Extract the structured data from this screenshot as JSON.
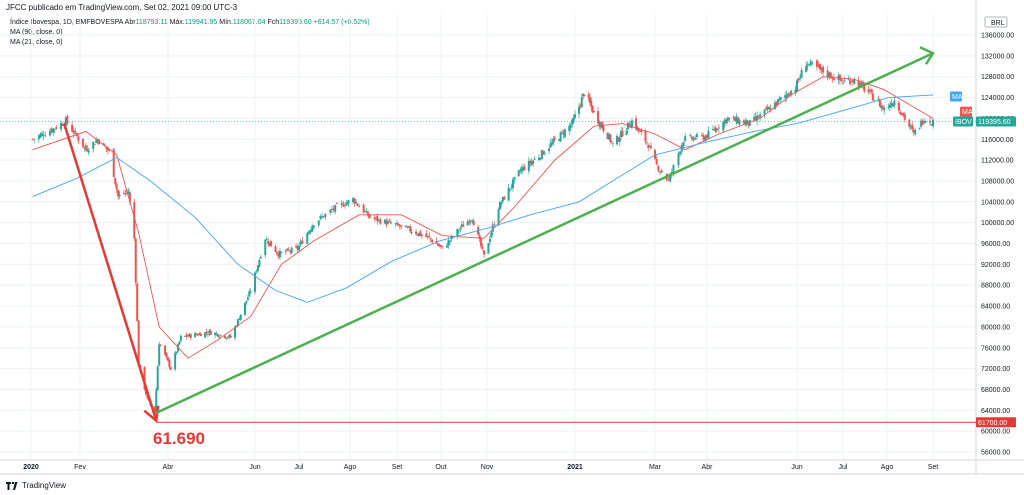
{
  "header": {
    "publisher": "JFCC publicado em TradingView.com, Set 02, 2021 09:00 UTC-3"
  },
  "legend": {
    "symbol": "Índice Ibovespa, 1D, BMFBOVESPA",
    "open_label": "Abr",
    "open": "118793.11",
    "high_label": "Máx.",
    "high": "119941.95",
    "low_label": "Mín.",
    "low": "118067.04",
    "close_label": "Fch",
    "close": "119395.60",
    "change": "+614.57 (+0.52%)",
    "ma90": "MA (90, close, 0)",
    "ma21": "MA (21, close, 0)"
  },
  "colors": {
    "up": "#26a69a",
    "down": "#ef5350",
    "ma21": "#ef5350",
    "ma90": "#42a5f5",
    "trend": "#4caf50",
    "fall": "#e53935",
    "grid": "#eef0f3",
    "axis_text": "#131722"
  },
  "annotation": {
    "low_text": "61.690"
  },
  "currency": "BRL",
  "badges": {
    "ma90": "MA",
    "ma21": "MA",
    "ibov_name": "IBOV",
    "ibov_value": "119395.60",
    "low_value": "61700.00"
  },
  "chart_data": {
    "type": "candlestick",
    "title": "Índice Ibovespa, 1D, BMFBOVESPA",
    "x_ticks": [
      "2020",
      "Fev",
      "Abr",
      "Jun",
      "Jul",
      "Ago",
      "Set",
      "Out",
      "Nov",
      "2021",
      "Mar",
      "Abr",
      "Jun",
      "Jul",
      "Ago",
      "Set"
    ],
    "y_ticks": [
      "136000.00",
      "132000.00",
      "128000.00",
      "124000.00",
      "120000.00",
      "116000.00",
      "112000.00",
      "108000.00",
      "104000.00",
      "100000.00",
      "96000.00",
      "92000.00",
      "88000.00",
      "84000.00",
      "80000.00",
      "76000.00",
      "72000.00",
      "68000.00",
      "64000.00",
      "60000.00",
      "56000.00"
    ],
    "ylim": [
      54000,
      138000
    ],
    "price_path": [
      [
        "2020-01-02",
        116000
      ],
      [
        "2020-01-15",
        118000
      ],
      [
        "2020-01-23",
        119500
      ],
      [
        "2020-02-05",
        114000
      ],
      [
        "2020-02-13",
        116000
      ],
      [
        "2020-02-21",
        113600
      ],
      [
        "2020-02-27",
        105000
      ],
      [
        "2020-03-05",
        106000
      ],
      [
        "2020-03-09",
        97000
      ],
      [
        "2020-03-12",
        73000
      ],
      [
        "2020-03-18",
        66000
      ],
      [
        "2020-03-23",
        63500
      ],
      [
        "2020-03-26",
        77000
      ],
      [
        "2020-04-03",
        72000
      ],
      [
        "2020-04-10",
        78000
      ],
      [
        "2020-04-30",
        79000
      ],
      [
        "2020-05-15",
        78000
      ],
      [
        "2020-05-29",
        87000
      ],
      [
        "2020-06-08",
        97000
      ],
      [
        "2020-06-17",
        94000
      ],
      [
        "2020-06-30",
        95000
      ],
      [
        "2020-07-10",
        100000
      ],
      [
        "2020-07-24",
        103000
      ],
      [
        "2020-08-03",
        104500
      ],
      [
        "2020-08-14",
        101000
      ],
      [
        "2020-08-31",
        99500
      ],
      [
        "2020-09-11",
        98500
      ],
      [
        "2020-09-23",
        97000
      ],
      [
        "2020-10-02",
        95000
      ],
      [
        "2020-10-14",
        99000
      ],
      [
        "2020-10-22",
        101000
      ],
      [
        "2020-10-30",
        93500
      ],
      [
        "2020-11-09",
        103000
      ],
      [
        "2020-11-24",
        110000
      ],
      [
        "2020-12-08",
        113000
      ],
      [
        "2020-12-30",
        119000
      ],
      [
        "2021-01-08",
        125000
      ],
      [
        "2021-01-15",
        121000
      ],
      [
        "2021-01-29",
        115000
      ],
      [
        "2021-02-12",
        119500
      ],
      [
        "2021-02-24",
        115000
      ],
      [
        "2021-03-02",
        111000
      ],
      [
        "2021-03-09",
        108000
      ],
      [
        "2021-03-18",
        116000
      ],
      [
        "2021-03-31",
        116500
      ],
      [
        "2021-04-15",
        120000
      ],
      [
        "2021-04-30",
        119000
      ],
      [
        "2021-05-14",
        122000
      ],
      [
        "2021-05-31",
        126000
      ],
      [
        "2021-06-07",
        130700
      ],
      [
        "2021-06-18",
        129000
      ],
      [
        "2021-07-01",
        127000
      ],
      [
        "2021-07-08",
        127500
      ],
      [
        "2021-07-19",
        125000
      ],
      [
        "2021-07-30",
        121800
      ],
      [
        "2021-08-06",
        123500
      ],
      [
        "2021-08-19",
        117000
      ],
      [
        "2021-08-26",
        120000
      ],
      [
        "2021-09-01",
        119400
      ]
    ],
    "series": [
      {
        "name": "MA (21, close, 0)",
        "values": [
          [
            "2020-01-02",
            114000
          ],
          [
            "2020-02-05",
            117500
          ],
          [
            "2020-02-26",
            113000
          ],
          [
            "2020-03-12",
            98000
          ],
          [
            "2020-03-26",
            80000
          ],
          [
            "2020-04-15",
            74000
          ],
          [
            "2020-05-06",
            77500
          ],
          [
            "2020-05-29",
            82000
          ],
          [
            "2020-06-19",
            92000
          ],
          [
            "2020-07-10",
            96500
          ],
          [
            "2020-08-07",
            101500
          ],
          [
            "2020-09-04",
            101500
          ],
          [
            "2020-10-02",
            97500
          ],
          [
            "2020-10-30",
            97000
          ],
          [
            "2020-11-20",
            103000
          ],
          [
            "2020-12-18",
            112000
          ],
          [
            "2021-01-15",
            118500
          ],
          [
            "2021-02-05",
            119000
          ],
          [
            "2021-03-01",
            117000
          ],
          [
            "2021-03-19",
            114000
          ],
          [
            "2021-04-09",
            117000
          ],
          [
            "2021-05-07",
            120000
          ],
          [
            "2021-05-28",
            124500
          ],
          [
            "2021-06-18",
            128000
          ],
          [
            "2021-07-09",
            127500
          ],
          [
            "2021-07-30",
            125500
          ],
          [
            "2021-08-20",
            122000
          ],
          [
            "2021-09-01",
            120000
          ]
        ]
      },
      {
        "name": "MA (90, close, 0)",
        "values": [
          [
            "2020-01-02",
            105000
          ],
          [
            "2020-01-30",
            108500
          ],
          [
            "2020-02-26",
            112500
          ],
          [
            "2020-03-20",
            108000
          ],
          [
            "2020-04-20",
            101000
          ],
          [
            "2020-05-20",
            92000
          ],
          [
            "2020-06-15",
            87000
          ],
          [
            "2020-07-06",
            84700
          ],
          [
            "2020-07-30",
            87500
          ],
          [
            "2020-08-28",
            92500
          ],
          [
            "2020-09-30",
            96500
          ],
          [
            "2020-11-02",
            99000
          ],
          [
            "2020-12-01",
            101500
          ],
          [
            "2021-01-04",
            104000
          ],
          [
            "2021-02-01",
            108500
          ],
          [
            "2021-03-01",
            113000
          ],
          [
            "2021-04-01",
            115500
          ],
          [
            "2021-05-03",
            117500
          ],
          [
            "2021-06-01",
            119000
          ],
          [
            "2021-07-01",
            121500
          ],
          [
            "2021-08-02",
            124000
          ],
          [
            "2021-09-01",
            124500
          ]
        ]
      }
    ],
    "annotations": [
      {
        "type": "line",
        "label": "fall",
        "from": [
          "2020-01-22",
          119000
        ],
        "to": [
          "2020-03-24",
          62000
        ]
      },
      {
        "type": "line",
        "label": "trend",
        "from": [
          "2020-03-24",
          63500
        ],
        "to": [
          "2021-09-01",
          132500
        ]
      },
      {
        "type": "hline",
        "value": 61700,
        "from": "2020-03-24"
      }
    ]
  }
}
